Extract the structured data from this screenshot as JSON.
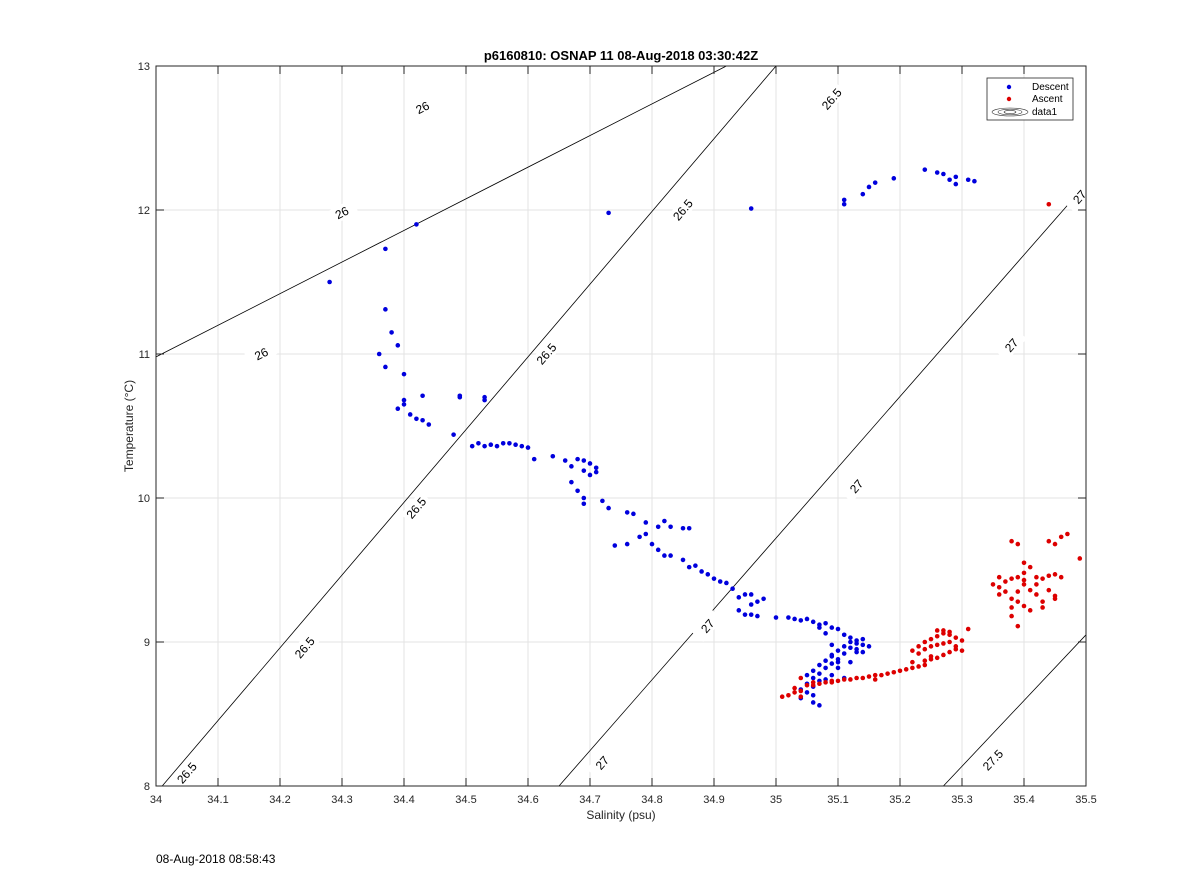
{
  "chart_data": {
    "type": "scatter",
    "title": "p6160810: OSNAP 11 08-Aug-2018 03:30:42Z",
    "xlabel": "Salinity (psu)",
    "ylabel": "Temperature (°C)",
    "xlim": [
      34,
      35.5
    ],
    "ylim": [
      8,
      13
    ],
    "xticks": [
      34,
      34.1,
      34.2,
      34.3,
      34.4,
      34.5,
      34.6,
      34.7,
      34.8,
      34.9,
      35,
      35.1,
      35.2,
      35.3,
      35.4,
      35.5
    ],
    "xtick_labels": [
      "34",
      "34.1",
      "34.2",
      "34.3",
      "34.4",
      "34.5",
      "34.6",
      "34.7",
      "34.8",
      "34.9",
      "35",
      "35.1",
      "35.2",
      "35.3",
      "35.4",
      "35.5"
    ],
    "yticks": [
      8,
      9,
      10,
      11,
      12,
      13
    ],
    "ytick_labels": [
      "8",
      "9",
      "10",
      "11",
      "12",
      "13"
    ],
    "grid": true,
    "legend_position": "top-right",
    "legend": [
      "Descent",
      "Ascent",
      "data1"
    ],
    "colors": {
      "descent": "#0000dd",
      "ascent": "#dd0000",
      "contour": "#000000",
      "grid": "#e3e3e3"
    },
    "series": [
      {
        "name": "Descent",
        "color": "#0000dd",
        "points": [
          [
            34.28,
            11.5
          ],
          [
            34.37,
            11.73
          ],
          [
            34.42,
            11.9
          ],
          [
            34.73,
            11.98
          ],
          [
            34.96,
            12.01
          ],
          [
            35.11,
            12.04
          ],
          [
            35.11,
            12.07
          ],
          [
            35.14,
            12.11
          ],
          [
            35.15,
            12.16
          ],
          [
            35.16,
            12.19
          ],
          [
            35.19,
            12.22
          ],
          [
            35.24,
            12.28
          ],
          [
            35.26,
            12.26
          ],
          [
            35.27,
            12.25
          ],
          [
            35.28,
            12.21
          ],
          [
            35.29,
            12.23
          ],
          [
            35.29,
            12.18
          ],
          [
            35.31,
            12.21
          ],
          [
            35.32,
            12.2
          ],
          [
            34.37,
            11.31
          ],
          [
            34.38,
            11.15
          ],
          [
            34.39,
            11.06
          ],
          [
            34.36,
            11.0
          ],
          [
            34.37,
            10.91
          ],
          [
            34.4,
            10.86
          ],
          [
            34.4,
            10.68
          ],
          [
            34.4,
            10.65
          ],
          [
            34.39,
            10.62
          ],
          [
            34.41,
            10.58
          ],
          [
            34.42,
            10.55
          ],
          [
            34.43,
            10.54
          ],
          [
            34.44,
            10.51
          ],
          [
            34.43,
            10.71
          ],
          [
            34.48,
            10.44
          ],
          [
            34.49,
            10.71
          ],
          [
            34.49,
            10.7
          ],
          [
            34.53,
            10.7
          ],
          [
            34.53,
            10.68
          ],
          [
            34.51,
            10.36
          ],
          [
            34.52,
            10.38
          ],
          [
            34.53,
            10.36
          ],
          [
            34.54,
            10.37
          ],
          [
            34.55,
            10.36
          ],
          [
            34.56,
            10.38
          ],
          [
            34.57,
            10.38
          ],
          [
            34.58,
            10.37
          ],
          [
            34.59,
            10.36
          ],
          [
            34.6,
            10.35
          ],
          [
            34.61,
            10.27
          ],
          [
            34.64,
            10.29
          ],
          [
            34.66,
            10.26
          ],
          [
            34.67,
            10.22
          ],
          [
            34.68,
            10.27
          ],
          [
            34.69,
            10.26
          ],
          [
            34.7,
            10.24
          ],
          [
            34.71,
            10.21
          ],
          [
            34.69,
            10.19
          ],
          [
            34.7,
            10.16
          ],
          [
            34.71,
            10.18
          ],
          [
            34.67,
            10.11
          ],
          [
            34.68,
            10.05
          ],
          [
            34.69,
            10.0
          ],
          [
            34.69,
            9.96
          ],
          [
            34.72,
            9.98
          ],
          [
            34.73,
            9.93
          ],
          [
            34.76,
            9.9
          ],
          [
            34.77,
            9.89
          ],
          [
            34.79,
            9.83
          ],
          [
            34.81,
            9.8
          ],
          [
            34.82,
            9.84
          ],
          [
            34.83,
            9.8
          ],
          [
            34.85,
            9.79
          ],
          [
            34.86,
            9.79
          ],
          [
            34.74,
            9.67
          ],
          [
            34.76,
            9.68
          ],
          [
            34.78,
            9.73
          ],
          [
            34.79,
            9.75
          ],
          [
            34.8,
            9.68
          ],
          [
            34.81,
            9.64
          ],
          [
            34.82,
            9.6
          ],
          [
            34.83,
            9.6
          ],
          [
            34.85,
            9.57
          ],
          [
            34.86,
            9.52
          ],
          [
            34.87,
            9.53
          ],
          [
            34.88,
            9.49
          ],
          [
            34.89,
            9.47
          ],
          [
            34.9,
            9.44
          ],
          [
            34.91,
            9.42
          ],
          [
            34.92,
            9.41
          ],
          [
            34.93,
            9.37
          ],
          [
            34.94,
            9.31
          ],
          [
            34.95,
            9.33
          ],
          [
            34.96,
            9.33
          ],
          [
            34.97,
            9.28
          ],
          [
            34.98,
            9.3
          ],
          [
            34.96,
            9.26
          ],
          [
            34.94,
            9.22
          ],
          [
            34.95,
            9.19
          ],
          [
            34.96,
            9.19
          ],
          [
            34.97,
            9.18
          ],
          [
            35.0,
            9.17
          ],
          [
            35.02,
            9.17
          ],
          [
            35.03,
            9.16
          ],
          [
            35.04,
            9.15
          ],
          [
            35.05,
            9.16
          ],
          [
            35.06,
            9.14
          ],
          [
            35.07,
            9.12
          ],
          [
            35.08,
            9.13
          ],
          [
            35.09,
            9.1
          ],
          [
            35.1,
            9.09
          ],
          [
            35.11,
            9.05
          ],
          [
            35.12,
            9.03
          ],
          [
            35.13,
            9.01
          ],
          [
            35.14,
            8.98
          ],
          [
            35.12,
            8.96
          ],
          [
            35.1,
            8.94
          ],
          [
            35.11,
            8.92
          ],
          [
            35.09,
            8.9
          ],
          [
            35.1,
            8.88
          ],
          [
            35.08,
            8.87
          ],
          [
            35.09,
            8.85
          ],
          [
            35.07,
            8.84
          ],
          [
            35.08,
            8.82
          ],
          [
            35.06,
            8.8
          ],
          [
            35.07,
            8.78
          ],
          [
            35.05,
            8.77
          ],
          [
            35.06,
            8.75
          ],
          [
            35.07,
            8.73
          ],
          [
            35.05,
            8.71
          ],
          [
            35.06,
            8.69
          ],
          [
            35.04,
            8.67
          ],
          [
            35.05,
            8.65
          ],
          [
            35.06,
            8.63
          ],
          [
            35.04,
            8.61
          ],
          [
            35.06,
            8.58
          ],
          [
            35.07,
            8.56
          ],
          [
            35.11,
            8.75
          ],
          [
            35.1,
            8.82
          ],
          [
            35.13,
            8.93
          ],
          [
            35.12,
            9.0
          ],
          [
            35.14,
            9.02
          ],
          [
            35.11,
            8.97
          ],
          [
            35.09,
            8.98
          ],
          [
            35.08,
            9.06
          ],
          [
            35.07,
            9.1
          ],
          [
            35.08,
            8.74
          ],
          [
            35.09,
            8.77
          ],
          [
            35.12,
            8.86
          ],
          [
            35.13,
            8.95
          ],
          [
            35.14,
            8.93
          ],
          [
            35.1,
            8.86
          ],
          [
            35.09,
            8.91
          ],
          [
            35.13,
            8.99
          ],
          [
            35.15,
            8.97
          ]
        ]
      },
      {
        "name": "Ascent",
        "color": "#dd0000",
        "points": [
          [
            35.44,
            12.04
          ],
          [
            35.01,
            8.62
          ],
          [
            35.02,
            8.63
          ],
          [
            35.03,
            8.65
          ],
          [
            35.03,
            8.68
          ],
          [
            35.04,
            8.62
          ],
          [
            35.04,
            8.66
          ],
          [
            35.04,
            8.75
          ],
          [
            35.05,
            8.7
          ],
          [
            35.06,
            8.72
          ],
          [
            35.06,
            8.7
          ],
          [
            35.07,
            8.71
          ],
          [
            35.08,
            8.72
          ],
          [
            35.09,
            8.72
          ],
          [
            35.09,
            8.73
          ],
          [
            35.1,
            8.73
          ],
          [
            35.11,
            8.74
          ],
          [
            35.12,
            8.74
          ],
          [
            35.13,
            8.75
          ],
          [
            35.14,
            8.75
          ],
          [
            35.15,
            8.76
          ],
          [
            35.16,
            8.77
          ],
          [
            35.17,
            8.77
          ],
          [
            35.16,
            8.74
          ],
          [
            35.18,
            8.78
          ],
          [
            35.19,
            8.79
          ],
          [
            35.2,
            8.8
          ],
          [
            35.21,
            8.81
          ],
          [
            35.22,
            8.82
          ],
          [
            35.23,
            8.83
          ],
          [
            35.24,
            8.84
          ],
          [
            35.22,
            8.86
          ],
          [
            35.24,
            8.87
          ],
          [
            35.25,
            8.9
          ],
          [
            35.23,
            8.92
          ],
          [
            35.24,
            8.95
          ],
          [
            35.25,
            8.97
          ],
          [
            35.26,
            8.98
          ],
          [
            35.27,
            8.99
          ],
          [
            35.28,
            9.0
          ],
          [
            35.25,
            9.02
          ],
          [
            35.26,
            9.04
          ],
          [
            35.27,
            9.06
          ],
          [
            35.28,
            9.05
          ],
          [
            35.29,
            9.03
          ],
          [
            35.3,
            9.01
          ],
          [
            35.29,
            8.97
          ],
          [
            35.28,
            8.93
          ],
          [
            35.27,
            8.91
          ],
          [
            35.26,
            8.89
          ],
          [
            35.25,
            8.88
          ],
          [
            35.24,
            9.0
          ],
          [
            35.23,
            8.97
          ],
          [
            35.22,
            8.94
          ],
          [
            35.26,
            9.08
          ],
          [
            35.27,
            9.08
          ],
          [
            35.28,
            9.07
          ],
          [
            35.31,
            9.09
          ],
          [
            35.29,
            8.95
          ],
          [
            35.3,
            8.94
          ],
          [
            35.35,
            9.4
          ],
          [
            35.36,
            9.38
          ],
          [
            35.37,
            9.42
          ],
          [
            35.38,
            9.44
          ],
          [
            35.39,
            9.45
          ],
          [
            35.4,
            9.43
          ],
          [
            35.37,
            9.35
          ],
          [
            35.38,
            9.3
          ],
          [
            35.39,
            9.28
          ],
          [
            35.4,
            9.25
          ],
          [
            35.41,
            9.22
          ],
          [
            35.38,
            9.18
          ],
          [
            35.39,
            9.11
          ],
          [
            35.42,
            9.4
          ],
          [
            35.43,
            9.44
          ],
          [
            35.44,
            9.46
          ],
          [
            35.45,
            9.47
          ],
          [
            35.46,
            9.45
          ],
          [
            35.44,
            9.36
          ],
          [
            35.45,
            9.32
          ],
          [
            35.42,
            9.33
          ],
          [
            35.43,
            9.28
          ],
          [
            35.45,
            9.3
          ],
          [
            35.38,
            9.7
          ],
          [
            35.39,
            9.68
          ],
          [
            35.44,
            9.7
          ],
          [
            35.45,
            9.68
          ],
          [
            35.46,
            9.73
          ],
          [
            35.47,
            9.75
          ],
          [
            35.49,
            9.58
          ],
          [
            35.4,
            9.55
          ],
          [
            35.41,
            9.52
          ],
          [
            35.4,
            9.48
          ],
          [
            35.36,
            9.33
          ],
          [
            35.41,
            9.36
          ],
          [
            35.43,
            9.24
          ],
          [
            35.38,
            9.24
          ],
          [
            35.36,
            9.45
          ],
          [
            35.39,
            9.35
          ],
          [
            35.4,
            9.4
          ],
          [
            35.42,
            9.45
          ]
        ]
      }
    ],
    "contours": [
      {
        "level": "26.0",
        "labels": [
          "26",
          "26",
          "26"
        ]
      },
      {
        "level": "26.5",
        "labels": [
          "26.5",
          "26.5",
          "26.5",
          "26.5",
          "26.5",
          "26.5"
        ]
      },
      {
        "level": "27.0",
        "labels": [
          "27",
          "27",
          "27",
          "27",
          "27"
        ]
      },
      {
        "level": "27.5",
        "labels": [
          "27.5"
        ]
      }
    ]
  },
  "footer": {
    "timestamp": "08-Aug-2018 08:58:43"
  }
}
